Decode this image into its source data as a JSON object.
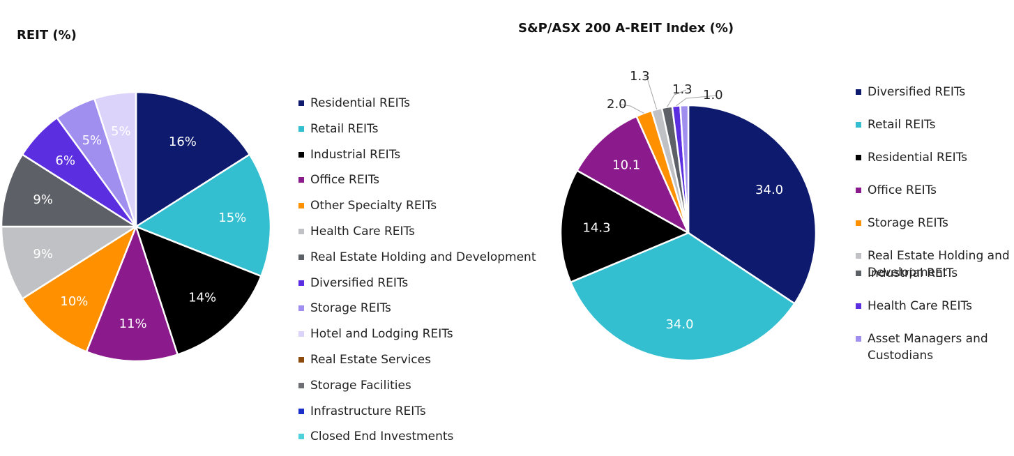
{
  "chart_data": [
    {
      "type": "pie",
      "id": "left",
      "title": "REIT (%)",
      "legend_position": "right",
      "slices": [
        {
          "label": "Residential REITs",
          "value": 16,
          "display": "16%",
          "color": "#0d1a6e",
          "label_color": "#ffffff"
        },
        {
          "label": "Retail REITs",
          "value": 15,
          "display": "15%",
          "color": "#33bfd0",
          "label_color": "#ffffff"
        },
        {
          "label": "Industrial REITs",
          "value": 14,
          "display": "14%",
          "color": "#000000",
          "label_color": "#ffffff"
        },
        {
          "label": "Office REITs",
          "value": 11,
          "display": "11%",
          "color": "#8b1a8c",
          "label_color": "#ffffff"
        },
        {
          "label": "Other Specialty REITs",
          "value": 10,
          "display": "10%",
          "color": "#ff9100",
          "label_color": "#ffffff"
        },
        {
          "label": "Health Care REITs",
          "value": 9,
          "display": "9%",
          "color": "#c0c1c4",
          "label_color": "#ffffff"
        },
        {
          "label": "Real Estate Holding and Development",
          "value": 9,
          "display": "9%",
          "color": "#5d6066",
          "label_color": "#ffffff"
        },
        {
          "label": "Diversified REITs",
          "value": 6,
          "display": "6%",
          "color": "#5b2ee0",
          "label_color": "#ffffff"
        },
        {
          "label": "Storage REITs",
          "value": 5,
          "display": "5%",
          "color": "#a18ff0",
          "label_color": "#ffffff"
        },
        {
          "label": "Hotel and Lodging REITs",
          "value": 5,
          "display": "5%",
          "color": "#dcd3fb",
          "label_color": "#ffffff"
        },
        {
          "label": "Real Estate Services",
          "value": 0,
          "display": "",
          "color": "#8c4a0c",
          "label_color": "#ffffff"
        },
        {
          "label": "Storage Facilities",
          "value": 0,
          "display": "",
          "color": "#6d6f73",
          "label_color": "#ffffff"
        },
        {
          "label": "Infrastructure REITs",
          "value": 0,
          "display": "",
          "color": "#1a2ec8",
          "label_color": "#ffffff"
        },
        {
          "label": "Closed End Investments",
          "value": 0,
          "display": "",
          "color": "#4fd1d9",
          "label_color": "#ffffff"
        }
      ]
    },
    {
      "type": "pie",
      "id": "right",
      "title": "S&P/ASX 200 A-REIT Index (%)",
      "legend_position": "right",
      "slices": [
        {
          "label": "Diversified REITs",
          "value": 34.0,
          "display": "34.0",
          "color": "#0d1a6e",
          "label_color": "#ffffff"
        },
        {
          "label": "Retail REITs",
          "value": 34.0,
          "display": "34.0",
          "color": "#33bfd0",
          "label_color": "#ffffff"
        },
        {
          "label": "Residential REITs",
          "value": 14.3,
          "display": "14.3",
          "color": "#000000",
          "label_color": "#ffffff"
        },
        {
          "label": "Office REITs",
          "value": 10.1,
          "display": "10.1",
          "color": "#8b1a8c",
          "label_color": "#ffffff"
        },
        {
          "label": "Storage REITs",
          "value": 2.0,
          "display": "2.0",
          "color": "#ff9100",
          "label_color": "#222222"
        },
        {
          "label": "Real Estate Holding and Development",
          "value": 1.3,
          "display": "1.3",
          "color": "#c0c1c4",
          "label_color": "#222222"
        },
        {
          "label": "Industrial REITs",
          "value": 1.3,
          "display": "1.3",
          "color": "#5d6066",
          "label_color": "#222222"
        },
        {
          "label": "Health Care REITs",
          "value": 1.0,
          "display": "1.0",
          "color": "#5b2ee0",
          "label_color": "#222222"
        },
        {
          "label": "Asset Managers and Custodians",
          "value": 1.0,
          "display": "",
          "color": "#a18ff0",
          "label_color": "#222222"
        }
      ]
    }
  ]
}
